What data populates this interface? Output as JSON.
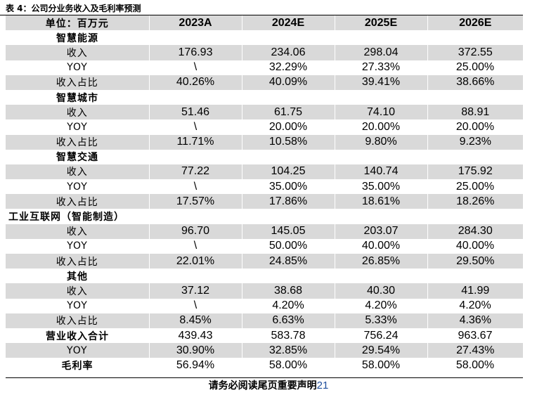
{
  "caption": "表 4：公司分业务收入及毛利率预测",
  "table": {
    "header": [
      "单位：百万元",
      "2023A",
      "2024E",
      "2025E",
      "2026E"
    ],
    "rows": [
      {
        "kind": "section",
        "label": "智慧能源",
        "values": [
          "",
          "",
          "",
          ""
        ]
      },
      {
        "kind": "row",
        "label": "收入",
        "values": [
          "176.93",
          "234.06",
          "298.04",
          "372.55"
        ]
      },
      {
        "kind": "row",
        "label": "YOY",
        "values": [
          "\\",
          "32.29%",
          "27.33%",
          "25.00%"
        ]
      },
      {
        "kind": "row",
        "label": "收入占比",
        "values": [
          "40.26%",
          "40.09%",
          "39.41%",
          "38.66%"
        ]
      },
      {
        "kind": "section",
        "label": "智慧城市",
        "values": [
          "",
          "",
          "",
          ""
        ]
      },
      {
        "kind": "row",
        "label": "收入",
        "values": [
          "51.46",
          "61.75",
          "74.10",
          "88.91"
        ]
      },
      {
        "kind": "row",
        "label": "YOY",
        "values": [
          "\\",
          "20.00%",
          "20.00%",
          "20.00%"
        ]
      },
      {
        "kind": "row",
        "label": "收入占比",
        "values": [
          "11.71%",
          "10.58%",
          "9.80%",
          "9.23%"
        ]
      },
      {
        "kind": "section",
        "label": "智慧交通",
        "values": [
          "",
          "",
          "",
          ""
        ]
      },
      {
        "kind": "row",
        "label": "收入",
        "values": [
          "77.22",
          "104.25",
          "140.74",
          "175.92"
        ]
      },
      {
        "kind": "row",
        "label": "YOY",
        "values": [
          "\\",
          "35.00%",
          "35.00%",
          "25.00%"
        ]
      },
      {
        "kind": "row",
        "label": "收入占比",
        "values": [
          "17.57%",
          "17.86%",
          "18.61%",
          "18.26%"
        ]
      },
      {
        "kind": "section-left",
        "label": "工业互联网（智能制造）",
        "values": [
          "",
          "",
          "",
          ""
        ]
      },
      {
        "kind": "row",
        "label": "收入",
        "values": [
          "96.70",
          "145.05",
          "203.07",
          "284.30"
        ]
      },
      {
        "kind": "row",
        "label": "YOY",
        "values": [
          "\\",
          "50.00%",
          "40.00%",
          "40.00%"
        ]
      },
      {
        "kind": "row",
        "label": "收入占比",
        "values": [
          "22.01%",
          "24.85%",
          "26.85%",
          "29.50%"
        ]
      },
      {
        "kind": "section",
        "label": "其他",
        "values": [
          "",
          "",
          "",
          ""
        ]
      },
      {
        "kind": "row",
        "label": "收入",
        "values": [
          "37.12",
          "38.68",
          "40.30",
          "41.99"
        ]
      },
      {
        "kind": "row",
        "label": "YOY",
        "values": [
          "\\",
          "4.20%",
          "4.20%",
          "4.20%"
        ]
      },
      {
        "kind": "row",
        "label": "收入占比",
        "values": [
          "8.45%",
          "6.63%",
          "5.33%",
          "4.36%"
        ]
      },
      {
        "kind": "total",
        "label": "营业收入合计",
        "values": [
          "439.43",
          "583.78",
          "756.24",
          "963.67"
        ]
      },
      {
        "kind": "row",
        "label": "YOY",
        "values": [
          "30.90%",
          "32.85%",
          "29.54%",
          "27.43%"
        ]
      },
      {
        "kind": "total",
        "label": "毛利率",
        "values": [
          "56.94%",
          "58.00%",
          "58.00%",
          "58.00%"
        ]
      }
    ]
  },
  "footer": {
    "text": "请务必阅读尾页重要声明",
    "page": "21"
  },
  "colors": {
    "shade": "#d9d9d9",
    "page_number": "#1f4e9c"
  }
}
